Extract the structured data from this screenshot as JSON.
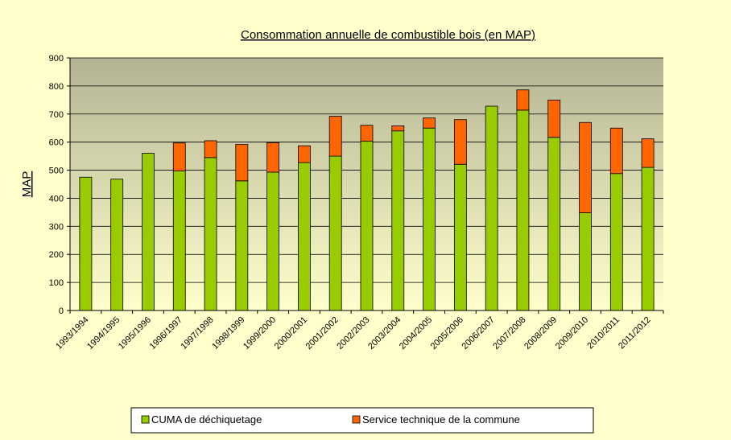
{
  "chart_data": {
    "type": "stacked_bar",
    "title": "Consommation annuelle de combustible bois (en MAP)",
    "y_label": "MAP",
    "categories": [
      "1993/1994",
      "1994/1995",
      "1995/1996",
      "1996/1997",
      "1997/1998",
      "1998/1999",
      "1999/2000",
      "2000/2001",
      "2001/2002",
      "2002/2003",
      "2003/2004",
      "2004/2005",
      "2005/2006",
      "2006/2007",
      "2007/2008",
      "2008/2009",
      "2009/2010",
      "2010/2011",
      "2011/2012"
    ],
    "series": [
      {
        "name": "CUMA de déchiquetage",
        "color": "#99cc00",
        "values": [
          475,
          468,
          560,
          497,
          545,
          462,
          493,
          527,
          550,
          603,
          640,
          650,
          521,
          728,
          714,
          617,
          348,
          488,
          510
        ]
      },
      {
        "name": "Service technique de la commune",
        "color": "#ff6600",
        "values": [
          0,
          0,
          0,
          100,
          60,
          130,
          105,
          60,
          142,
          57,
          18,
          36,
          159,
          0,
          72,
          133,
          322,
          162,
          102
        ]
      }
    ],
    "ylim": [
      0,
      900
    ],
    "yticks": [
      0,
      100,
      200,
      300,
      400,
      500,
      600,
      700,
      800,
      900
    ],
    "grid": true,
    "legend": "bottom"
  }
}
